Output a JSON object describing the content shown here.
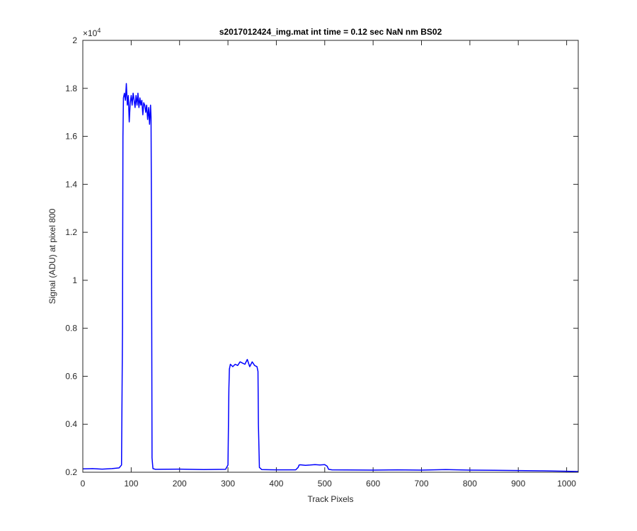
{
  "chart_data": {
    "type": "line",
    "title": "s2017012424_img.mat int time = 0.12 sec  NaN nm BS02",
    "xlabel": "Track Pixels",
    "ylabel": "Signal (ADU) at pixel 800",
    "xlim": [
      0,
      1024
    ],
    "ylim": [
      2000,
      20000
    ],
    "y_exponent_label": "×10",
    "y_exponent_power": "4",
    "x_ticks": [
      0,
      100,
      200,
      300,
      400,
      500,
      600,
      700,
      800,
      900,
      1000
    ],
    "x_tick_labels": [
      "0",
      "100",
      "200",
      "300",
      "400",
      "500",
      "600",
      "700",
      "800",
      "900",
      "1000"
    ],
    "y_ticks": [
      2000,
      4000,
      6000,
      8000,
      10000,
      12000,
      14000,
      16000,
      18000,
      20000
    ],
    "y_tick_labels": [
      "0.2",
      "0.4",
      "0.6",
      "0.8",
      "1",
      "1.2",
      "1.4",
      "1.6",
      "1.8",
      "2"
    ],
    "grid": false,
    "line_color": "#0000ff",
    "series": [
      {
        "color": "#0000ff",
        "x": [
          0,
          20,
          40,
          60,
          75,
          80,
          82,
          83,
          84,
          86,
          88,
          90,
          92,
          94,
          96,
          98,
          100,
          102,
          104,
          106,
          108,
          110,
          112,
          114,
          116,
          118,
          120,
          122,
          124,
          126,
          128,
          130,
          132,
          134,
          136,
          138,
          140,
          141,
          142,
          143,
          145,
          150,
          200,
          250,
          295,
          300,
          302,
          303,
          305,
          310,
          315,
          320,
          325,
          330,
          335,
          340,
          345,
          350,
          355,
          360,
          362,
          363,
          365,
          370,
          400,
          440,
          445,
          447,
          450,
          460,
          470,
          480,
          490,
          500,
          505,
          508,
          515,
          600,
          650,
          700,
          750,
          800,
          850,
          900,
          950,
          1000,
          1024
        ],
        "y": [
          2140,
          2150,
          2130,
          2150,
          2180,
          2300,
          8000,
          16000,
          17600,
          17800,
          17500,
          18200,
          17300,
          17700,
          16600,
          17400,
          17700,
          17300,
          17800,
          17500,
          17200,
          17700,
          17300,
          17800,
          17200,
          17600,
          17300,
          17500,
          16900,
          17400,
          17300,
          17000,
          17300,
          16700,
          17200,
          16500,
          17300,
          16800,
          12000,
          2600,
          2150,
          2120,
          2130,
          2110,
          2120,
          2300,
          5500,
          6300,
          6500,
          6400,
          6500,
          6450,
          6600,
          6550,
          6500,
          6700,
          6400,
          6600,
          6450,
          6400,
          6200,
          4000,
          2200,
          2110,
          2100,
          2100,
          2200,
          2300,
          2310,
          2290,
          2300,
          2320,
          2300,
          2320,
          2250,
          2120,
          2100,
          2090,
          2100,
          2090,
          2110,
          2090,
          2080,
          2070,
          2060,
          2040,
          2030
        ]
      }
    ]
  }
}
